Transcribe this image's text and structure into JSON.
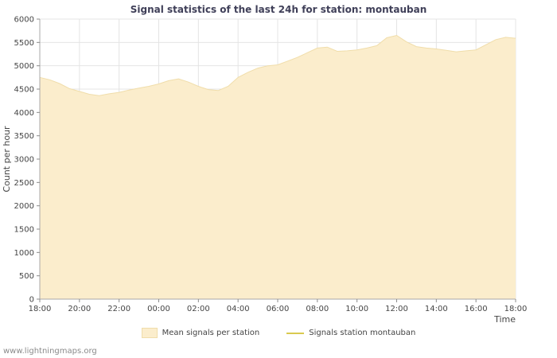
{
  "page": {
    "watermark": "www.lightningmaps.org"
  },
  "chart_data": {
    "type": "area",
    "title": "Signal statistics of the last 24h for station: montauban",
    "xlabel": "Time",
    "ylabel": "Count per hour",
    "ylim": [
      0,
      6000
    ],
    "y_ticks": [
      0,
      500,
      1000,
      1500,
      2000,
      2500,
      3000,
      3500,
      4000,
      4500,
      5000,
      5500,
      6000
    ],
    "x_tick_labels": [
      "18:00",
      "20:00",
      "22:00",
      "00:00",
      "02:00",
      "04:00",
      "06:00",
      "08:00",
      "10:00",
      "12:00",
      "14:00",
      "16:00",
      "18:00"
    ],
    "x_total_hours": 24,
    "x_tick_interval_hours": 2,
    "x_start_hour": 0,
    "x_step_hours": 0.5,
    "grid": true,
    "legend_position": "bottom",
    "colors": {
      "area_fill": "#fbedcc",
      "area_edge": "#f0ddaa",
      "station_line": "#d9c94f",
      "grid": "#e4e4e4",
      "axis": "#a8a8a8",
      "tick": "#8c8c8c",
      "text": "#454545",
      "title": "#3f3f58"
    },
    "series": [
      {
        "name": "Mean signals per station",
        "type": "area",
        "color": "#fbedcc",
        "values": [
          4750,
          4700,
          4620,
          4510,
          4450,
          4390,
          4360,
          4400,
          4430,
          4480,
          4520,
          4560,
          4610,
          4680,
          4720,
          4650,
          4560,
          4490,
          4470,
          4560,
          4750,
          4860,
          4950,
          5000,
          5020,
          5100,
          5180,
          5280,
          5380,
          5400,
          5310,
          5320,
          5340,
          5380,
          5430,
          5600,
          5650,
          5510,
          5410,
          5380,
          5360,
          5330,
          5300,
          5320,
          5340,
          5450,
          5560,
          5610,
          5590
        ]
      },
      {
        "name": "Signals station montauban",
        "type": "line",
        "color": "#d9c94f",
        "values": []
      }
    ]
  }
}
